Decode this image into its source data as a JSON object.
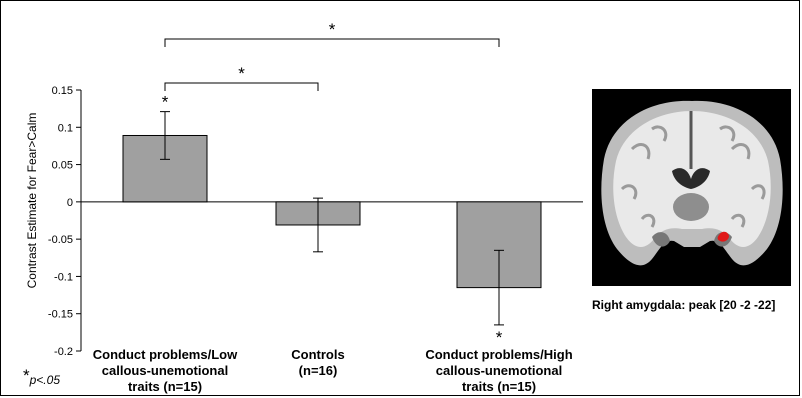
{
  "chart_data": {
    "type": "bar",
    "ylabel": "Contrast Estimate for Fear>Calm",
    "ylim": [
      -0.2,
      0.15
    ],
    "yticks": [
      "0.15",
      "0.1",
      "0.05",
      "0",
      "-0.05",
      "-0.1",
      "-0.15",
      "-0.2"
    ],
    "ytick_values": [
      0.15,
      0.1,
      0.05,
      0,
      -0.05,
      -0.1,
      -0.15,
      -0.2
    ],
    "categories": [
      [
        "Conduct problems/Low",
        "callous-unemotional",
        "traits (n=15)"
      ],
      [
        "Controls",
        "(n=16)"
      ],
      [
        "Conduct problems/High",
        "callous-unemotional",
        "traits (n=15)"
      ]
    ],
    "values": [
      0.089,
      -0.031,
      -0.115
    ],
    "errors": [
      0.032,
      0.036,
      0.05
    ],
    "bar_stars": [
      "*",
      "",
      "*"
    ],
    "brackets": [
      {
        "from": 0,
        "to": 1,
        "label": "*"
      },
      {
        "from": 0,
        "to": 2,
        "label": "*"
      }
    ],
    "bar_color": "#a0a0a0",
    "grid": false
  },
  "footnote": {
    "star": "*",
    "text": "p<.05"
  },
  "brain": {
    "caption": "Right amygdala: peak [20 -2 -22]",
    "highlight_color": "#e01818"
  }
}
